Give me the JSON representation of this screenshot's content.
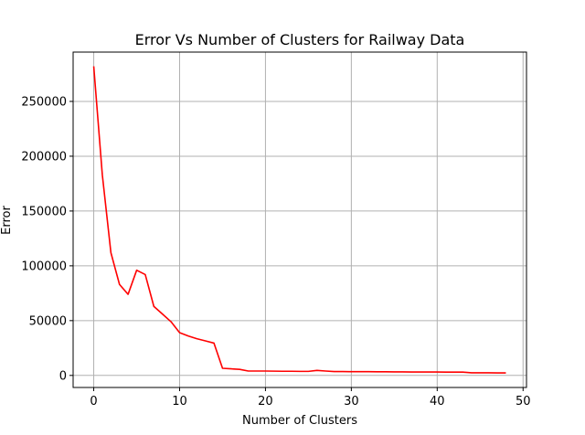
{
  "chart_data": {
    "type": "line",
    "title": "Error Vs Number of Clusters for Railway Data",
    "xlabel": "Number of Clusters",
    "ylabel": "Error",
    "xlim": [
      -2.4,
      50.4
    ],
    "ylim": [
      -11000,
      295000
    ],
    "xticks": [
      0,
      10,
      20,
      30,
      40,
      50
    ],
    "yticks": [
      0,
      50000,
      100000,
      150000,
      200000,
      250000
    ],
    "grid": true,
    "series": [
      {
        "color": "#ff0000",
        "x": [
          0,
          1,
          2,
          3,
          4,
          5,
          6,
          7,
          8,
          9,
          10,
          11,
          12,
          13,
          14,
          15,
          16,
          17,
          18,
          19,
          20,
          21,
          22,
          23,
          24,
          25,
          26,
          27,
          28,
          29,
          30,
          31,
          32,
          33,
          34,
          35,
          36,
          37,
          38,
          39,
          40,
          41,
          42,
          43,
          44,
          45,
          46,
          47,
          48
        ],
        "y": [
          282000,
          183000,
          112000,
          83000,
          74000,
          96000,
          92000,
          63000,
          56000,
          49000,
          39000,
          36000,
          33500,
          31500,
          29500,
          6500,
          6000,
          5500,
          4000,
          4000,
          4000,
          3900,
          3800,
          3800,
          3700,
          3700,
          4600,
          4000,
          3500,
          3500,
          3400,
          3400,
          3400,
          3300,
          3300,
          3200,
          3200,
          3100,
          3100,
          3100,
          3100,
          3000,
          3000,
          3000,
          2400,
          2400,
          2400,
          2300,
          2300
        ]
      }
    ]
  }
}
